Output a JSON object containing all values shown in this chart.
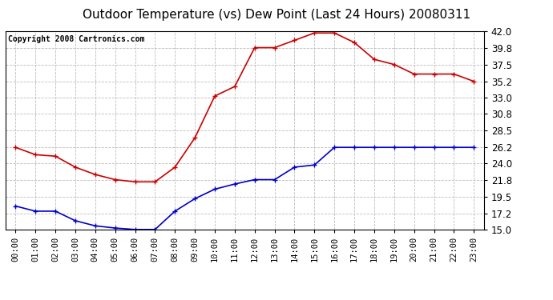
{
  "title": "Outdoor Temperature (vs) Dew Point (Last 24 Hours) 20080311",
  "copyright": "Copyright 2008 Cartronics.com",
  "hours": [
    "00:00",
    "01:00",
    "02:00",
    "03:00",
    "04:00",
    "05:00",
    "06:00",
    "07:00",
    "08:00",
    "09:00",
    "10:00",
    "11:00",
    "12:00",
    "13:00",
    "14:00",
    "15:00",
    "16:00",
    "17:00",
    "18:00",
    "19:00",
    "20:00",
    "21:00",
    "22:00",
    "23:00"
  ],
  "temp": [
    26.2,
    25.2,
    25.0,
    23.5,
    22.5,
    21.8,
    21.5,
    21.5,
    23.5,
    27.5,
    33.2,
    34.5,
    39.8,
    39.8,
    40.8,
    41.8,
    41.8,
    40.5,
    38.2,
    37.5,
    36.2,
    36.2,
    36.2,
    35.2
  ],
  "dew": [
    18.2,
    17.5,
    17.5,
    16.2,
    15.5,
    15.2,
    15.0,
    15.0,
    17.5,
    19.2,
    20.5,
    21.2,
    21.8,
    21.8,
    23.5,
    23.8,
    26.2,
    26.2,
    26.2,
    26.2,
    26.2,
    26.2,
    26.2,
    26.2
  ],
  "temp_color": "#cc0000",
  "dew_color": "#0000cc",
  "ylim_min": 15.0,
  "ylim_max": 42.0,
  "yticks": [
    15.0,
    17.2,
    19.5,
    21.8,
    24.0,
    26.2,
    28.5,
    30.8,
    33.0,
    35.2,
    37.5,
    39.8,
    42.0
  ],
  "background_color": "#ffffff",
  "plot_bg_color": "#ffffff",
  "grid_color": "#bbbbbb",
  "title_fontsize": 11,
  "copyright_fontsize": 7,
  "tick_fontsize": 7.5,
  "ytick_fontsize": 8.5
}
